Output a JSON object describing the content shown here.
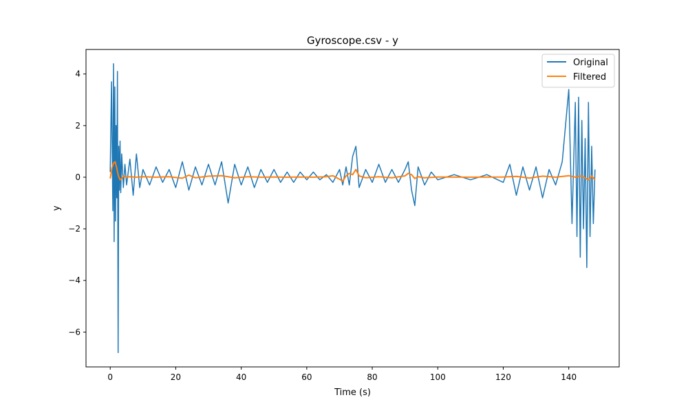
{
  "chart_data": {
    "type": "line",
    "title": "Gyroscope.csv - y",
    "xlabel": "Time (s)",
    "ylabel": "y",
    "xlim": [
      -7.4,
      155.4
    ],
    "ylim": [
      -7.35,
      4.95
    ],
    "xticks": [
      0,
      20,
      40,
      60,
      80,
      100,
      120,
      140
    ],
    "yticks": [
      -6,
      -4,
      -2,
      0,
      2,
      4
    ],
    "xtick_labels": [
      "0",
      "20",
      "40",
      "60",
      "80",
      "100",
      "120",
      "140"
    ],
    "ytick_labels": [
      "−6",
      "−4",
      "−2",
      "0",
      "2",
      "4"
    ],
    "grid": false,
    "legend_position": "top-right",
    "series": [
      {
        "name": "Original",
        "color": "#1f77b4",
        "x": [
          0,
          0.4,
          0.8,
          1.0,
          1.2,
          1.4,
          1.6,
          1.8,
          2.0,
          2.2,
          2.4,
          2.6,
          2.8,
          3.0,
          3.2,
          3.5,
          4,
          4.5,
          5,
          6,
          7,
          8,
          9,
          10,
          12,
          14,
          16,
          18,
          20,
          22,
          24,
          26,
          28,
          30,
          32,
          34,
          36,
          38,
          40,
          42,
          44,
          46,
          48,
          50,
          52,
          54,
          56,
          58,
          60,
          62,
          64,
          66,
          68,
          70,
          71,
          72,
          73,
          74,
          75,
          76,
          78,
          80,
          82,
          84,
          86,
          88,
          90,
          91,
          92,
          93,
          94,
          96,
          98,
          100,
          105,
          110,
          115,
          120,
          122,
          124,
          126,
          128,
          130,
          132,
          134,
          136,
          138,
          140,
          141,
          142,
          142.5,
          143,
          143.5,
          144,
          144.5,
          145,
          145.5,
          146,
          146.5,
          147,
          147.5,
          148
        ],
        "values": [
          0.2,
          3.7,
          -1.3,
          4.4,
          -2.5,
          3.5,
          -1.7,
          2.0,
          -0.8,
          4.1,
          -6.8,
          1.2,
          -0.5,
          1.4,
          -0.6,
          0.9,
          -0.4,
          0.5,
          -0.3,
          0.7,
          -0.7,
          0.9,
          -0.4,
          0.3,
          -0.3,
          0.4,
          -0.2,
          0.3,
          -0.4,
          0.6,
          -0.5,
          0.4,
          -0.3,
          0.5,
          -0.3,
          0.6,
          -1.0,
          0.5,
          -0.3,
          0.4,
          -0.4,
          0.3,
          -0.2,
          0.3,
          -0.2,
          0.2,
          -0.2,
          0.2,
          -0.1,
          0.2,
          -0.1,
          0.1,
          -0.2,
          0.3,
          -0.3,
          0.4,
          -0.3,
          0.8,
          1.2,
          -0.4,
          0.3,
          -0.2,
          0.5,
          -0.2,
          0.3,
          -0.2,
          0.3,
          0.6,
          -0.5,
          -1.1,
          0.4,
          -0.3,
          0.2,
          -0.1,
          0.1,
          -0.1,
          0.1,
          -0.2,
          0.5,
          -0.7,
          0.4,
          -0.5,
          0.4,
          -0.8,
          0.3,
          -0.3,
          0.6,
          3.4,
          -1.8,
          2.9,
          -2.3,
          3.1,
          -3.1,
          2.2,
          -2.0,
          1.5,
          -3.5,
          2.9,
          -2.3,
          1.2,
          -1.8,
          0.3
        ]
      },
      {
        "name": "Filtered",
        "color": "#ff7f0e",
        "x": [
          0,
          0.5,
          1.0,
          1.5,
          2.0,
          2.5,
          3.0,
          3.5,
          4.0,
          5.0,
          6.0,
          8,
          10,
          14,
          18,
          22,
          24,
          26,
          30,
          34,
          38,
          42,
          46,
          50,
          54,
          58,
          62,
          66,
          68,
          70,
          71,
          72,
          73,
          74,
          75,
          76,
          78,
          82,
          86,
          90,
          91,
          92,
          93,
          94,
          96,
          100,
          110,
          120,
          124,
          128,
          132,
          136,
          140,
          142,
          144,
          146,
          147,
          148
        ],
        "values": [
          -0.05,
          0.35,
          0.55,
          0.6,
          0.35,
          0.05,
          -0.1,
          -0.05,
          0.05,
          0.0,
          0.02,
          0.0,
          0.02,
          0.0,
          0.02,
          -0.04,
          0.08,
          -0.02,
          0.04,
          0.06,
          -0.02,
          0.02,
          0.0,
          0.01,
          0.0,
          0.01,
          0.0,
          0.02,
          0.06,
          -0.08,
          -0.15,
          0.05,
          0.15,
          0.1,
          0.3,
          0.05,
          -0.02,
          0.02,
          -0.02,
          0.05,
          0.15,
          0.1,
          -0.05,
          0.02,
          -0.02,
          0.01,
          0.0,
          0.01,
          0.03,
          -0.03,
          0.04,
          0.0,
          0.06,
          0.0,
          0.05,
          -0.1,
          0.05,
          -0.1
        ]
      }
    ]
  }
}
